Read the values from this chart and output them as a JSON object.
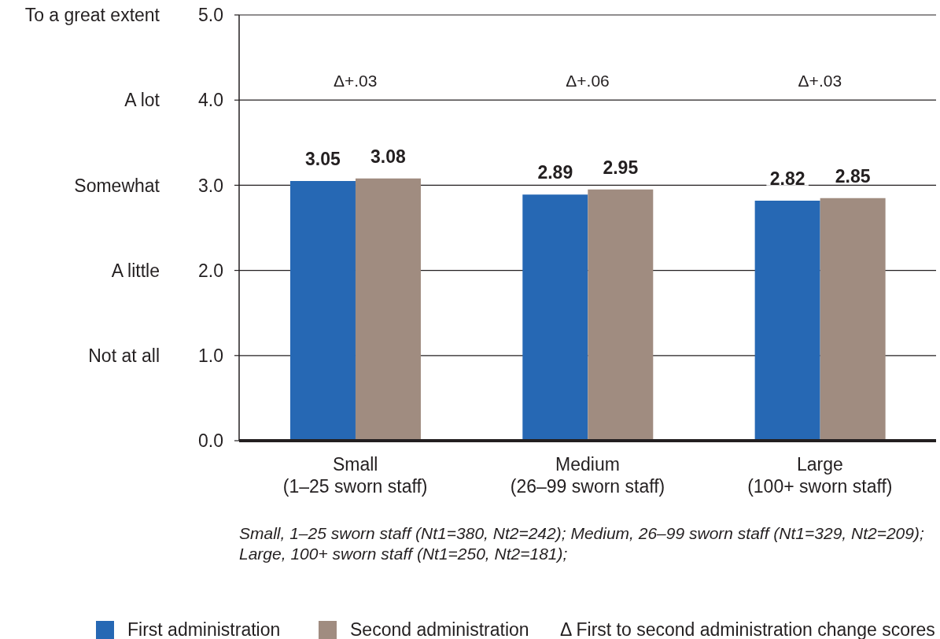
{
  "chart_data": {
    "type": "bar",
    "categories": [
      "Small\n(1–25 sworn staff)",
      "Medium\n(26–99 sworn staff)",
      "Large\n(100+ sworn staff)"
    ],
    "series": [
      {
        "name": "First administration",
        "color": "#2668b4",
        "values": [
          3.05,
          2.89,
          2.82
        ]
      },
      {
        "name": "Second administration",
        "color": "#a08c80",
        "values": [
          3.08,
          2.95,
          2.85
        ]
      }
    ],
    "ylim": [
      0,
      5
    ],
    "yticks": [
      {
        "value": 0,
        "label": "0.0"
      },
      {
        "value": 1,
        "label": "1.0"
      },
      {
        "value": 2,
        "label": "2.0"
      },
      {
        "value": 3,
        "label": "3.0"
      },
      {
        "value": 4,
        "label": "4.0"
      },
      {
        "value": 5,
        "label": "5.0"
      }
    ],
    "y2_categories": [
      "To a great extent",
      "A lot",
      "Somewhat",
      "A little",
      "Not at all",
      null
    ],
    "grid": "y",
    "legend": "bottom",
    "data_labels": true,
    "annotations": [
      "Δ+.03",
      "Δ+.06",
      "Δ+.03",
      "Small, 1–25 sworn staff (Nt1=380, Nt2=242); Medium, 26–99 sworn staff (Nt1=329, Nt2=209); Large, 100+ sworn staff (Nt1=250, Nt2=181);",
      "Δ First to second administration change scores"
    ]
  }
}
